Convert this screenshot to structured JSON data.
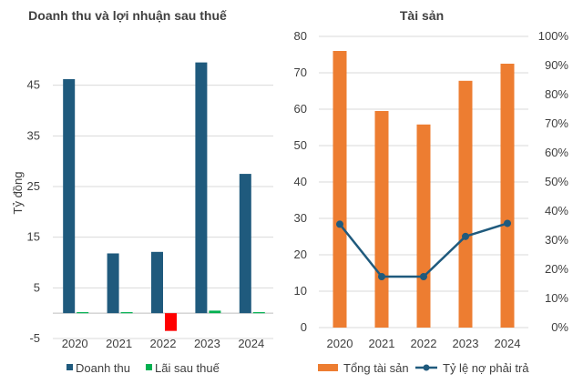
{
  "chart_data": [
    {
      "type": "bar",
      "title": "Doanh thu và lợi nhuận sau thuế",
      "ylabel": "Tỷ đồng",
      "xlabel": "",
      "categories": [
        "2020",
        "2021",
        "2022",
        "2023",
        "2024"
      ],
      "ylim": [
        -5,
        55
      ],
      "yticks": [
        "-5",
        "5",
        "15",
        "25",
        "35",
        "45"
      ],
      "grid": true,
      "legend_position": "bottom",
      "series": [
        {
          "name": "Doanh thu",
          "color": "#1f5a7d",
          "values": [
            46.2,
            11.8,
            12.1,
            49.5,
            27.5
          ]
        },
        {
          "name": "Lãi sau thuế",
          "color": "#00b050",
          "negative_color": "#ff0000",
          "values": [
            0.2,
            0.2,
            -3.5,
            0.5,
            0.2
          ]
        }
      ]
    },
    {
      "type": "bar",
      "title": "Tài sản",
      "xlabel": "",
      "categories": [
        "2020",
        "2021",
        "2022",
        "2023",
        "2024"
      ],
      "ylim": [
        0,
        80
      ],
      "yticks": [
        "0",
        "10",
        "20",
        "30",
        "40",
        "50",
        "60",
        "70",
        "80"
      ],
      "y2lim": [
        0,
        100
      ],
      "y2ticks": [
        "0%",
        "10%",
        "20%",
        "30%",
        "40%",
        "50%",
        "60%",
        "70%",
        "80%",
        "90%",
        "100%"
      ],
      "grid": true,
      "legend_position": "bottom",
      "series": [
        {
          "name": "Tổng tài sản",
          "type": "bar",
          "axis": "left",
          "color": "#ed7d31",
          "values": [
            76,
            59.5,
            55.8,
            67.8,
            72.5
          ]
        },
        {
          "name": "Tỷ lệ nợ phải trả",
          "type": "line",
          "axis": "right",
          "color": "#1f5a7d",
          "values": [
            35.5,
            17.5,
            17.5,
            31.3,
            35.8
          ]
        }
      ]
    }
  ]
}
